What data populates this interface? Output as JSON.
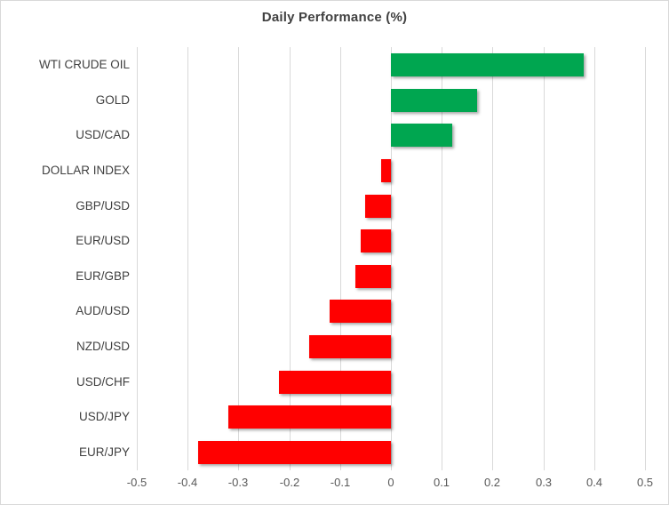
{
  "chart_data": {
    "type": "bar",
    "orientation": "horizontal",
    "title": "Daily Performance (%)",
    "categories": [
      "WTI CRUDE OIL",
      "GOLD",
      "USD/CAD",
      "DOLLAR INDEX",
      "GBP/USD",
      "EUR/USD",
      "EUR/GBP",
      "AUD/USD",
      "NZD/USD",
      "USD/CHF",
      "USD/JPY",
      "EUR/JPY"
    ],
    "values": [
      0.38,
      0.17,
      0.12,
      -0.02,
      -0.05,
      -0.06,
      -0.07,
      -0.12,
      -0.16,
      -0.22,
      -0.32,
      -0.38
    ],
    "xlim": [
      -0.5,
      0.5
    ],
    "x_ticks": [
      -0.5,
      -0.4,
      -0.3,
      -0.2,
      -0.1,
      0,
      0.1,
      0.2,
      0.3,
      0.4,
      0.5
    ],
    "x_tick_labels": [
      "-0.5",
      "-0.4",
      "-0.3",
      "-0.2",
      "-0.1",
      "0",
      "0.1",
      "0.2",
      "0.3",
      "0.4",
      "0.5"
    ],
    "grid": true,
    "legend": "none",
    "xlabel": "",
    "ylabel": "",
    "colors": {
      "positive_bar": "#00A650",
      "negative_bar": "#FF0000",
      "gridline": "#D9D9D9",
      "border": "#D9D9D9",
      "title_text": "#404040",
      "category_text": "#404040",
      "tick_text": "#595959",
      "background": "#FFFFFF"
    }
  }
}
